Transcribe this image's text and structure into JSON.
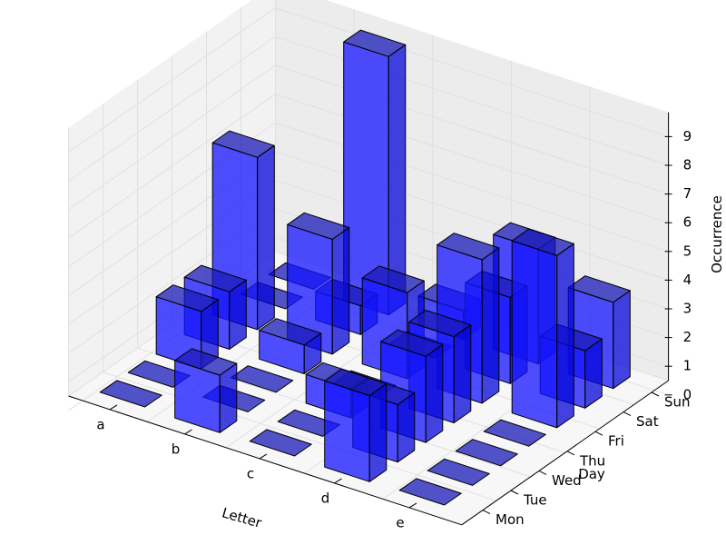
{
  "chart_data": {
    "type": "bar3d",
    "title": "",
    "xlabel": "Letter",
    "ylabel": "Day",
    "zlabel": "Occurrence",
    "x_categories": [
      "a",
      "b",
      "c",
      "d",
      "e"
    ],
    "y_categories": [
      "Mon",
      "Tue",
      "Wed",
      "Thu",
      "Fri",
      "Sat",
      "Sun"
    ],
    "zlim": [
      0,
      9
    ],
    "z_ticks": [
      "0",
      "1",
      "2",
      "3",
      "4",
      "5",
      "6",
      "7",
      "8",
      "9"
    ],
    "grid": true,
    "bar_color": "#0000ff",
    "values": [
      [
        0,
        2,
        0,
        3,
        0
      ],
      [
        0,
        0,
        0,
        2,
        0
      ],
      [
        2,
        0,
        1,
        3,
        0
      ],
      [
        2,
        1,
        0,
        3,
        0
      ],
      [
        6,
        4,
        3,
        5,
        6
      ],
      [
        0,
        1,
        0,
        3,
        2
      ],
      [
        0,
        9,
        1,
        4,
        3
      ]
    ]
  }
}
